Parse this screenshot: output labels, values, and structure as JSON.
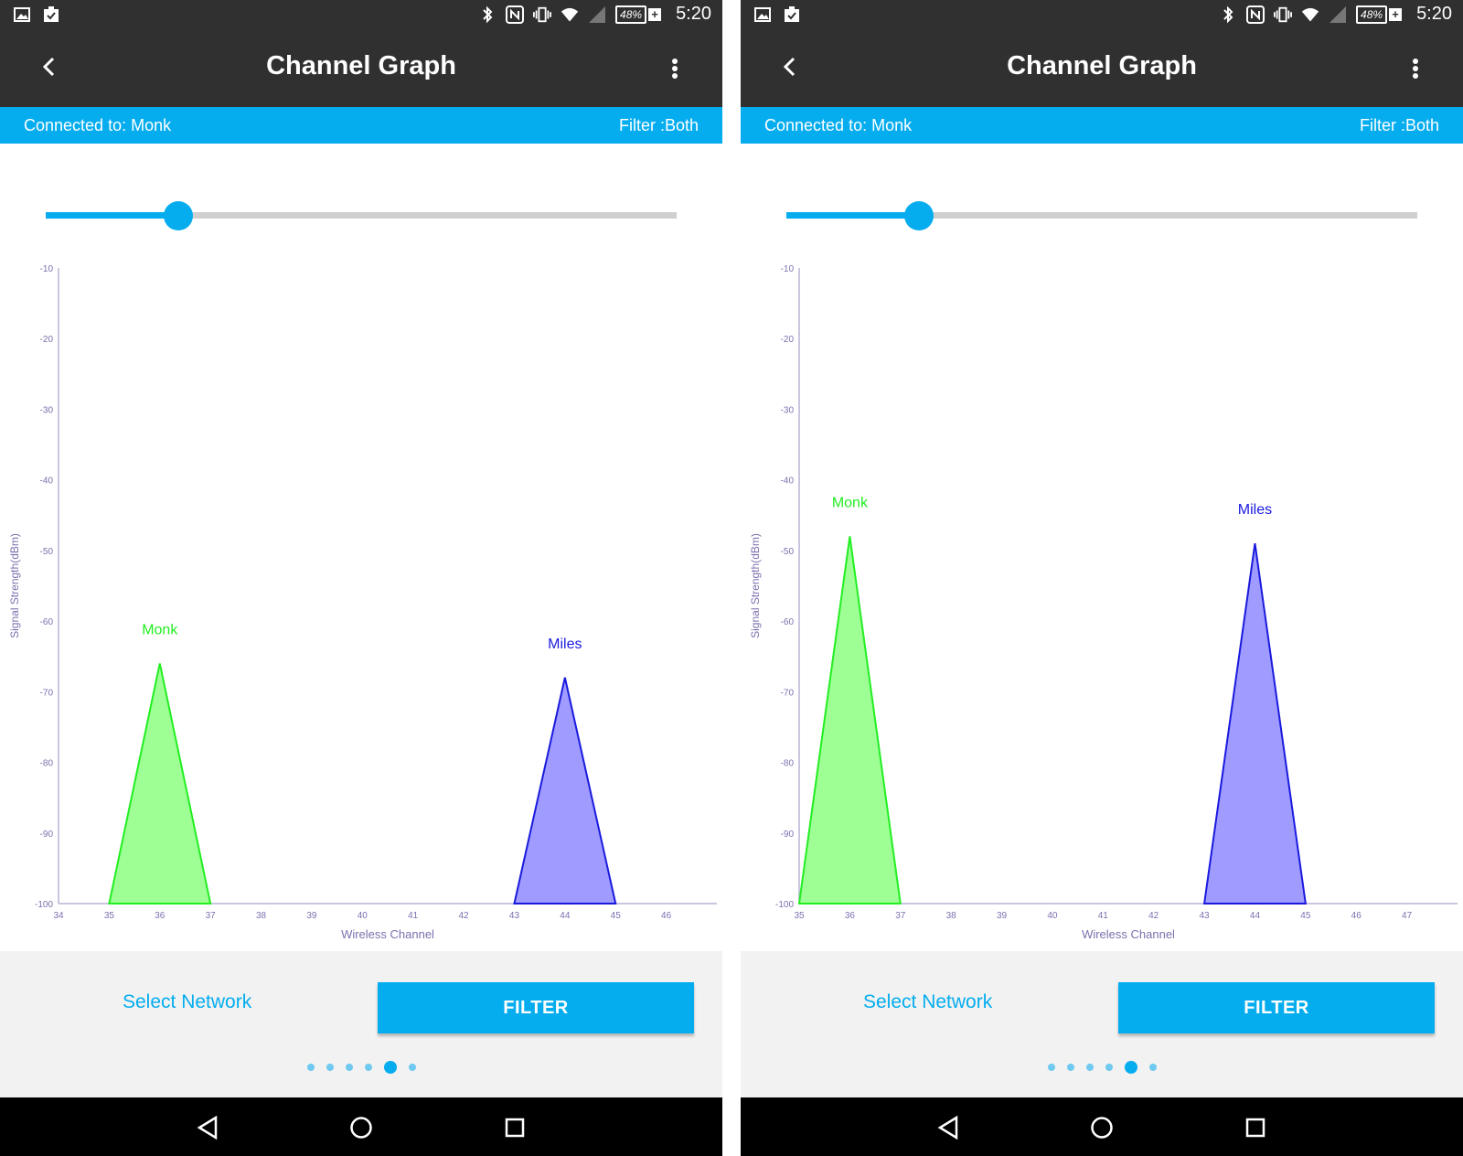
{
  "panels": [
    {
      "status_bar": {
        "battery": "48%",
        "battery_plus": "+",
        "time": "5:20",
        "icons": [
          "image-icon",
          "clipboard-check-icon",
          "bluetooth-icon",
          "nfc-icon",
          "vibrate-icon",
          "wifi-icon",
          "cell-signal-icon",
          "battery-icon"
        ]
      },
      "app_bar": {
        "title": "Channel Graph"
      },
      "info_bar": {
        "connected": "Connected to: Monk",
        "filter": "Filter :Both"
      },
      "slider": {
        "value": 0.21
      },
      "buttons": {
        "select_network": "Select Network",
        "filter": "FILTER"
      },
      "pager": {
        "count": 6,
        "active": 4
      },
      "chart_data": {
        "type": "area",
        "xlabel": "Wireless Channel",
        "ylabel": "Signal Strength(dBm)",
        "xlim": [
          34,
          47
        ],
        "ylim": [
          -100,
          -10
        ],
        "x_ticks": [
          34,
          35,
          36,
          37,
          38,
          39,
          40,
          41,
          42,
          43,
          44,
          45,
          46
        ],
        "y_ticks": [
          -10,
          -20,
          -30,
          -40,
          -50,
          -60,
          -70,
          -80,
          -90,
          -100
        ],
        "series": [
          {
            "name": "Monk",
            "color": "#22ee22",
            "fill": "#9eff94",
            "x": [
              35,
              36,
              37
            ],
            "y": [
              -100,
              -66,
              -100
            ]
          },
          {
            "name": "Miles",
            "color": "#1a1add",
            "fill": "#a09bff",
            "x": [
              43,
              44,
              45
            ],
            "y": [
              -100,
              -68,
              -100
            ]
          }
        ]
      }
    },
    {
      "status_bar": {
        "battery": "48%",
        "battery_plus": "+",
        "time": "5:20",
        "icons": [
          "image-icon",
          "clipboard-check-icon",
          "bluetooth-icon",
          "nfc-icon",
          "vibrate-icon",
          "wifi-icon",
          "cell-signal-icon",
          "battery-icon"
        ]
      },
      "app_bar": {
        "title": "Channel Graph"
      },
      "info_bar": {
        "connected": "Connected to: Monk",
        "filter": "Filter :Both"
      },
      "slider": {
        "value": 0.21
      },
      "buttons": {
        "select_network": "Select Network",
        "filter": "FILTER"
      },
      "pager": {
        "count": 6,
        "active": 4
      },
      "chart_data": {
        "type": "area",
        "xlabel": "Wireless Channel",
        "ylabel": "Signal Strength(dBm)",
        "xlim": [
          35,
          48
        ],
        "ylim": [
          -100,
          -10
        ],
        "x_ticks": [
          35,
          36,
          37,
          38,
          39,
          40,
          41,
          42,
          43,
          44,
          45,
          46,
          47
        ],
        "y_ticks": [
          -10,
          -20,
          -30,
          -40,
          -50,
          -60,
          -70,
          -80,
          -90,
          -100
        ],
        "series": [
          {
            "name": "Monk",
            "color": "#22ee22",
            "fill": "#9eff94",
            "x": [
              35,
              36,
              37
            ],
            "y": [
              -100,
              -48,
              -100
            ]
          },
          {
            "name": "Miles",
            "color": "#1a1add",
            "fill": "#a09bff",
            "x": [
              43,
              44,
              45
            ],
            "y": [
              -100,
              -49,
              -100
            ]
          }
        ]
      }
    }
  ]
}
